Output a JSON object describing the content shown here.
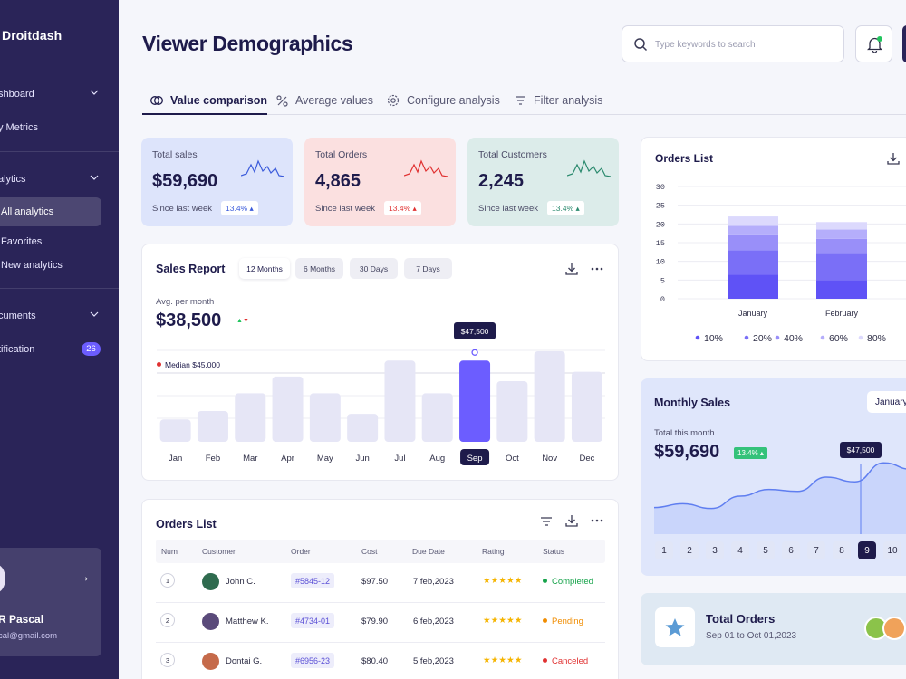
{
  "sidebar": {
    "brand": "Droitdash",
    "items": [
      {
        "label": "shboard"
      },
      {
        "label": "y Metrics"
      },
      {
        "label": "alytics"
      },
      {
        "label": "All analytics"
      },
      {
        "label": "Favorites"
      },
      {
        "label": "New analytics"
      },
      {
        "label": "cuments"
      },
      {
        "label": "tification",
        "badge": "26"
      }
    ],
    "profile": {
      "name": "R Pascal",
      "email": "cal@gmail.com"
    }
  },
  "header": {
    "title": "Viewer Demographics",
    "search_placeholder": "Type keywords to search"
  },
  "tabs": [
    {
      "label": "Value comparison"
    },
    {
      "label": "Average values"
    },
    {
      "label": "Configure analysis"
    },
    {
      "label": "Filter analysis"
    }
  ],
  "stats": [
    {
      "label": "Total sales",
      "value": "$59,690",
      "since": "Since last week",
      "change": "13.4% ▴",
      "bg": "#dde4fb",
      "accent": "#3b5bdb"
    },
    {
      "label": "Total Orders",
      "value": "4,865",
      "since": "Since last week",
      "change": "13.4% ▴",
      "bg": "#fbe0e0",
      "accent": "#e03131"
    },
    {
      "label": "Total Customers",
      "value": "2,245",
      "since": "Since last week",
      "change": "13.4% ▴",
      "bg": "#dcecea",
      "accent": "#2b8a6e"
    }
  ],
  "sales_report": {
    "title": "Sales Report",
    "ranges": [
      "12 Months",
      "6 Months",
      "30 Days",
      "7 Days"
    ],
    "avg_label": "Avg. per month",
    "avg_value": "$38,500",
    "median_label": "Median $45,000",
    "tooltip": "$47,500"
  },
  "chart_data": [
    {
      "type": "bar",
      "title": "Sales Report",
      "categories": [
        "Jan",
        "Feb",
        "Mar",
        "Apr",
        "May",
        "Jun",
        "Jul",
        "Aug",
        "Sep",
        "Oct",
        "Nov",
        "Dec"
      ],
      "values": [
        24,
        33,
        52,
        70,
        52,
        30,
        87,
        52,
        87,
        65,
        97,
        75
      ],
      "highlight": "Sep",
      "highlight_color": "#6c5dff",
      "bar_color": "#e6e6f6"
    },
    {
      "type": "bar",
      "title": "Orders List",
      "stacked": true,
      "categories": [
        "January",
        "February"
      ],
      "ylim": [
        0,
        30
      ],
      "yticks": [
        0,
        5,
        10,
        15,
        20,
        25,
        30
      ],
      "series": [
        {
          "name": "10%",
          "values": [
            6.5,
            5
          ],
          "color": "#5f52f6"
        },
        {
          "name": "20%",
          "values": [
            6.5,
            7
          ],
          "color": "#7a6ff7"
        },
        {
          "name": "40%",
          "values": [
            4,
            4
          ],
          "color": "#998ff9"
        },
        {
          "name": "60%",
          "values": [
            2.5,
            2.5
          ],
          "color": "#b5aefb"
        },
        {
          "name": "80%",
          "values": [
            2.5,
            2
          ],
          "color": "#dcd9fd"
        }
      ]
    },
    {
      "type": "area",
      "title": "Monthly Sales",
      "x": [
        1,
        2,
        3,
        4,
        5,
        6,
        7,
        8,
        9,
        10
      ],
      "values": [
        28,
        32,
        27,
        40,
        47,
        45,
        60,
        55,
        75,
        68
      ],
      "highlight_x": 9,
      "tooltip": "$47,500"
    }
  ],
  "orders_table": {
    "title": "Orders List",
    "columns": [
      "Num",
      "Customer",
      "Order",
      "Cost",
      "Due Date",
      "Rating",
      "Status"
    ],
    "rows": [
      {
        "num": "1",
        "customer": "John C.",
        "order": "#5845-12",
        "cost": "$97.50",
        "due": "7 feb,2023",
        "rating": "★★★★★",
        "status": "Completed",
        "status_color": "#16a34a",
        "avatar": "#2f6b4f"
      },
      {
        "num": "2",
        "customer": "Matthew K.",
        "order": "#4734-01",
        "cost": "$79.90",
        "due": "6 feb,2023",
        "rating": "★★★★★",
        "status": "Pending",
        "status_color": "#f08c00",
        "avatar": "#5a4a7a"
      },
      {
        "num": "3",
        "customer": "Dontai G.",
        "order": "#6956-23",
        "cost": "$80.40",
        "due": "5 feb,2023",
        "rating": "★★★★★",
        "status": "Canceled",
        "status_color": "#e03131",
        "avatar": "#c56a4a"
      }
    ]
  },
  "orders_list": {
    "title": "Orders List"
  },
  "monthly_sales": {
    "title": "Monthly Sales",
    "select": "January",
    "sub": "Total this month",
    "value": "$59,690",
    "change": "13.4% ▴",
    "pages": [
      "1",
      "2",
      "3",
      "4",
      "5",
      "6",
      "7",
      "8",
      "9",
      "10"
    ],
    "active_page": "9"
  },
  "total_orders": {
    "title": "Total Orders",
    "range": "Sep 01 to Oct 01,2023"
  }
}
